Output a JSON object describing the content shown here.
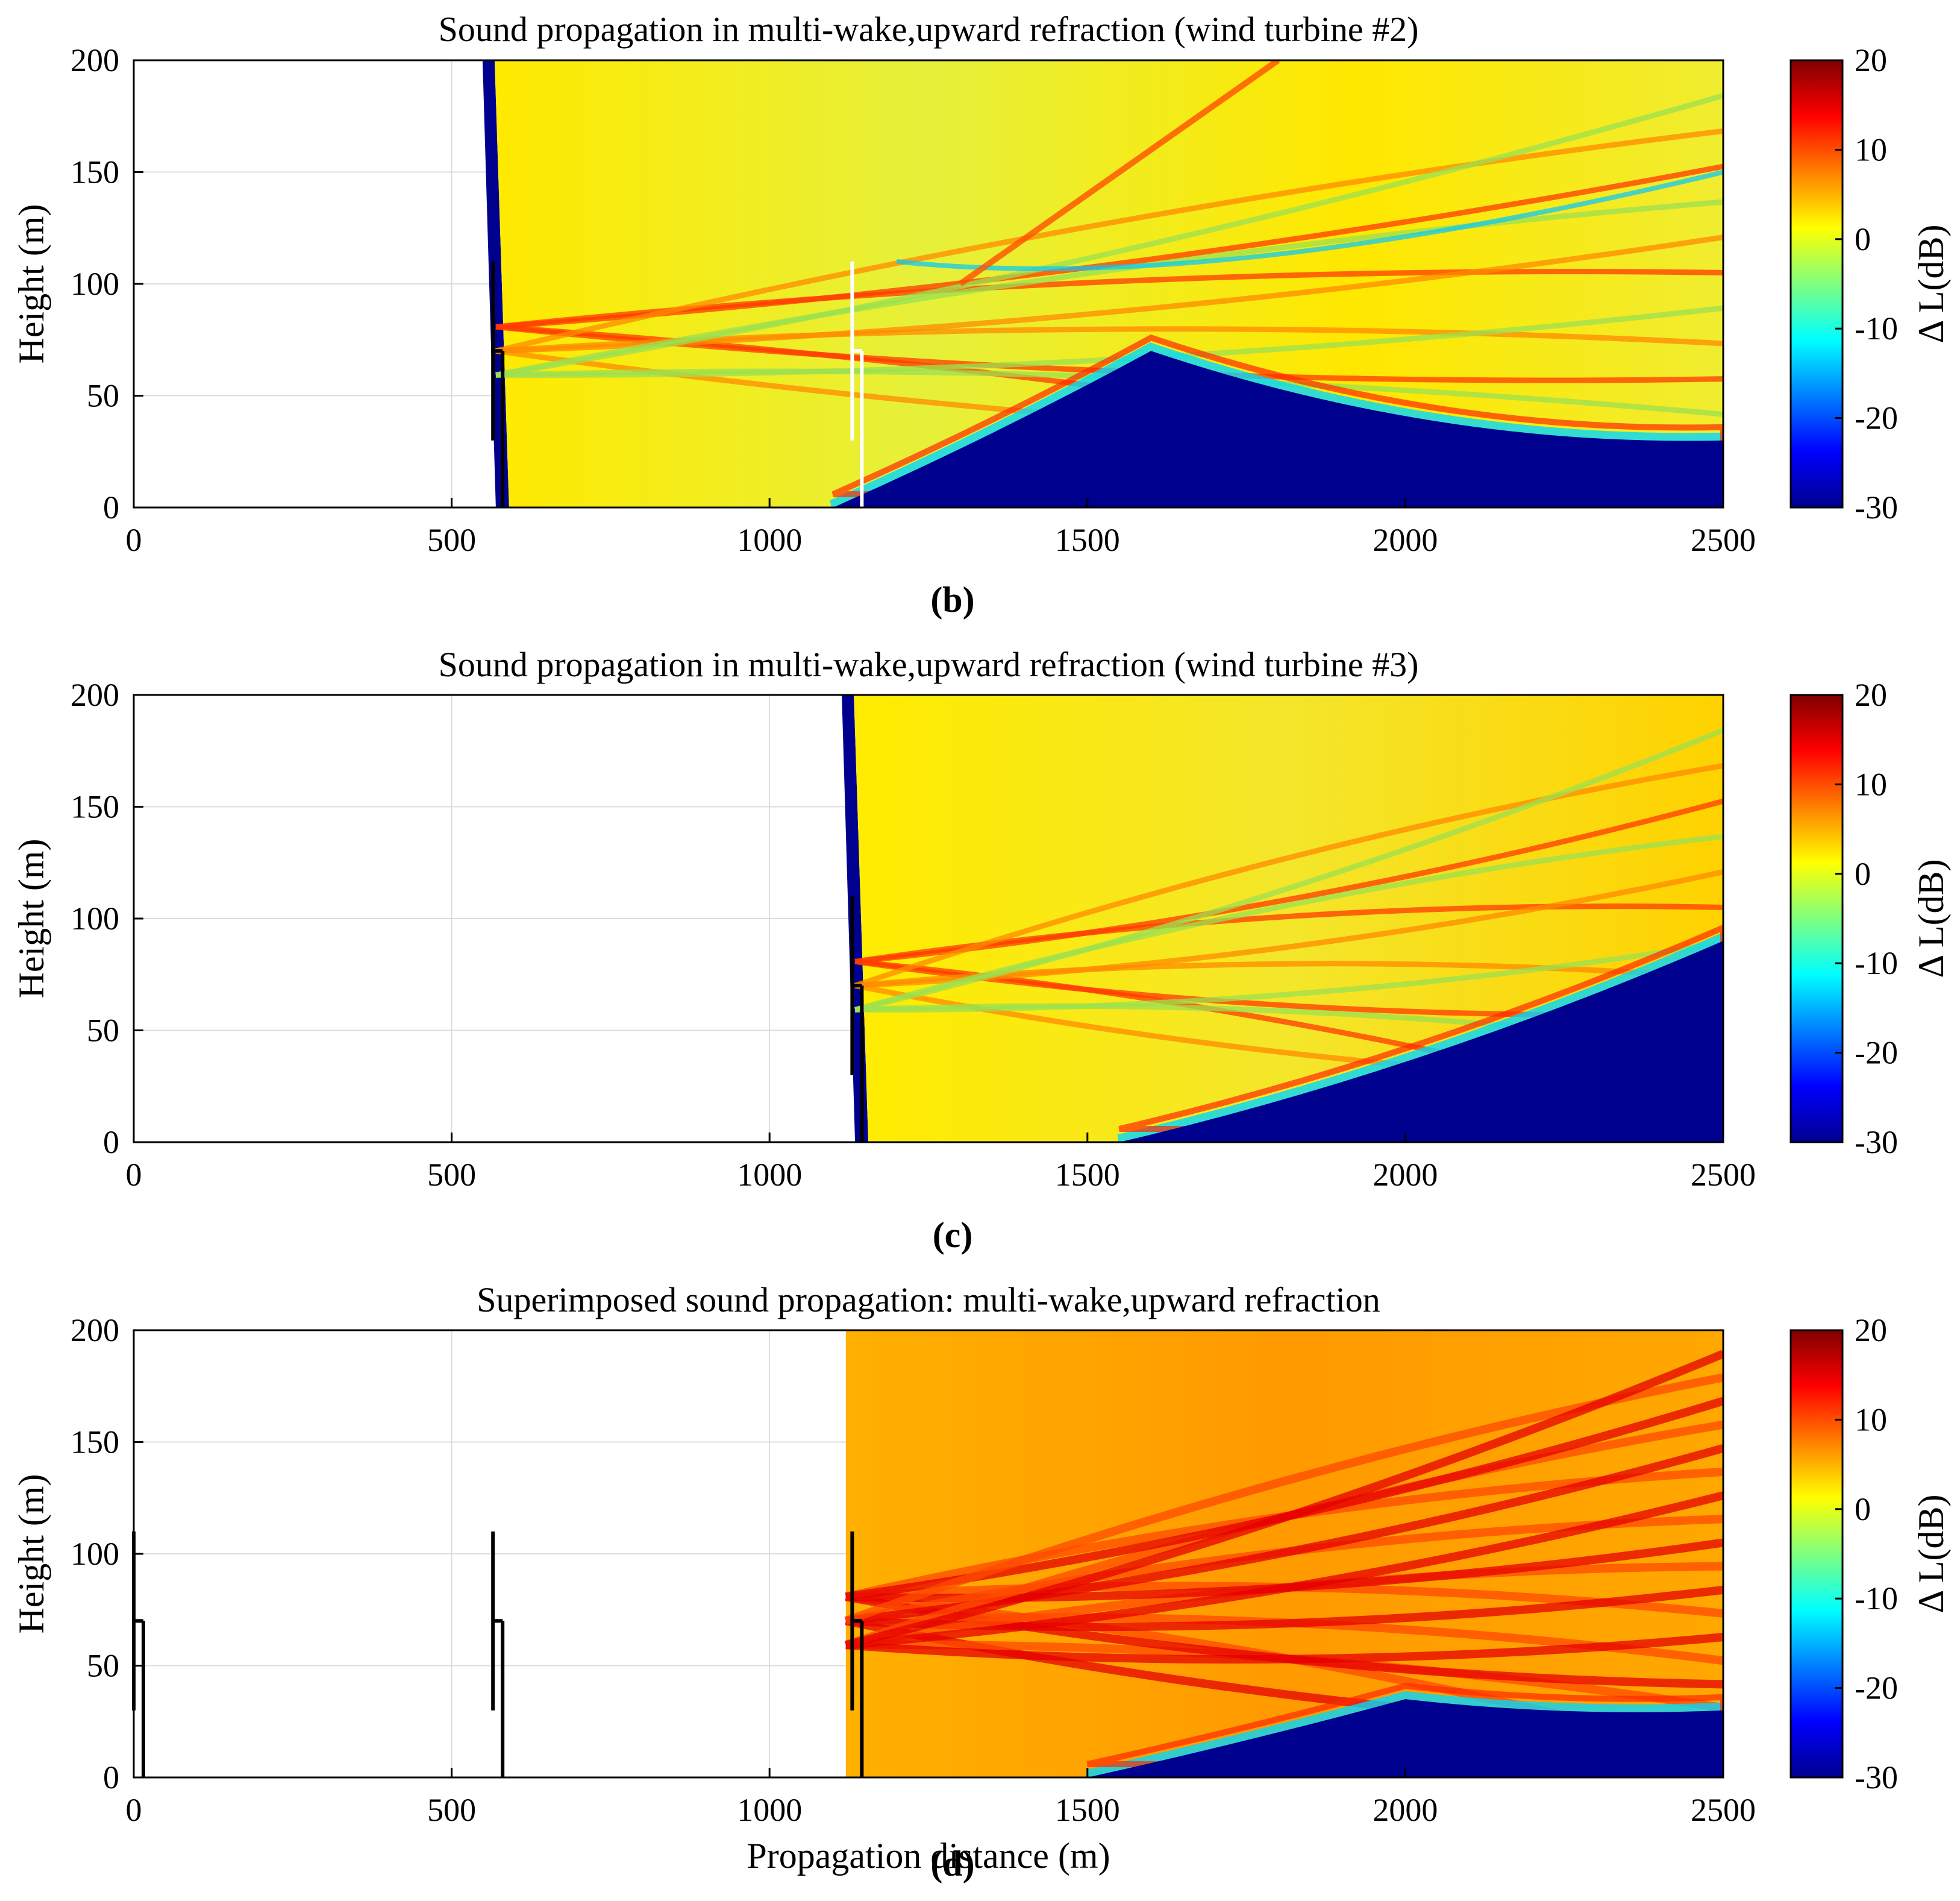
{
  "figure": {
    "panels": [
      {
        "label": "(b)",
        "title": "Sound propagation in multi-wake,upward refraction (wind turbine #2)"
      },
      {
        "label": "(c)",
        "title": "Sound propagation in multi-wake,upward refraction (wind turbine #3)"
      },
      {
        "label": "(d)",
        "title": "Superimposed sound propagation: multi-wake,upward refraction"
      }
    ]
  },
  "chart_data": [
    {
      "type": "heatmap",
      "panel": "b",
      "title": "Sound propagation in multi-wake,upward refraction (wind turbine #2)",
      "xlabel": "",
      "ylabel": "Height (m)",
      "colorbar_label": "Δ L(dB)",
      "xlim": [
        0,
        2500
      ],
      "ylim": [
        0,
        200
      ],
      "clim": [
        -30,
        20
      ],
      "xticks": [
        0,
        500,
        1000,
        1500,
        2000,
        2500
      ],
      "yticks": [
        0,
        50,
        100,
        150,
        200
      ],
      "cticks": [
        20,
        10,
        0,
        -10,
        -20,
        -30
      ],
      "grid": true,
      "source_x": 560,
      "field_start_x": 560,
      "shadow_zone": [
        [
          1100,
          0
        ],
        [
          1600,
          70
        ],
        [
          2500,
          30
        ]
      ],
      "turbines": [
        {
          "x": 565,
          "hub_height": 70,
          "top": 110,
          "bottom": 30,
          "color": "black"
        },
        {
          "x": 1130,
          "hub_height": 70,
          "top": 110,
          "bottom": 30,
          "color": "white"
        }
      ]
    },
    {
      "type": "heatmap",
      "panel": "c",
      "title": "Sound propagation in multi-wake,upward refraction (wind turbine #3)",
      "xlabel": "",
      "ylabel": "Height (m)",
      "colorbar_label": "Δ L(dB)",
      "xlim": [
        0,
        2500
      ],
      "ylim": [
        0,
        200
      ],
      "clim": [
        -30,
        20
      ],
      "xticks": [
        0,
        500,
        1000,
        1500,
        2000,
        2500
      ],
      "yticks": [
        0,
        50,
        100,
        150,
        200
      ],
      "cticks": [
        20,
        10,
        0,
        -10,
        -20,
        -30
      ],
      "grid": true,
      "source_x": 1130,
      "field_start_x": 1125,
      "shadow_zone": [
        [
          1550,
          0
        ],
        [
          2500,
          90
        ]
      ],
      "turbines": [
        {
          "x": 1130,
          "hub_height": 70,
          "top": 110,
          "bottom": 30,
          "color": "black"
        }
      ]
    },
    {
      "type": "heatmap",
      "panel": "d",
      "title": "Superimposed sound propagation: multi-wake,upward refraction",
      "xlabel": "Propagation distance (m)",
      "ylabel": "Height (m)",
      "colorbar_label": "Δ L(dB)",
      "xlim": [
        0,
        2500
      ],
      "ylim": [
        0,
        200
      ],
      "clim": [
        -30,
        20
      ],
      "xticks": [
        0,
        500,
        1000,
        1500,
        2000,
        2500
      ],
      "yticks": [
        0,
        50,
        100,
        150,
        200
      ],
      "cticks": [
        20,
        10,
        0,
        -10,
        -20,
        -30
      ],
      "grid": true,
      "field_start_x": 1120,
      "shadow_zone": [
        [
          1500,
          0
        ],
        [
          2000,
          35
        ],
        [
          2500,
          30
        ]
      ],
      "turbines": [
        {
          "x": 0,
          "hub_height": 70,
          "top": 110,
          "bottom": 30,
          "color": "black"
        },
        {
          "x": 565,
          "hub_height": 70,
          "top": 110,
          "bottom": 30,
          "color": "black"
        },
        {
          "x": 1130,
          "hub_height": 70,
          "top": 110,
          "bottom": 30,
          "color": "black"
        }
      ]
    }
  ]
}
